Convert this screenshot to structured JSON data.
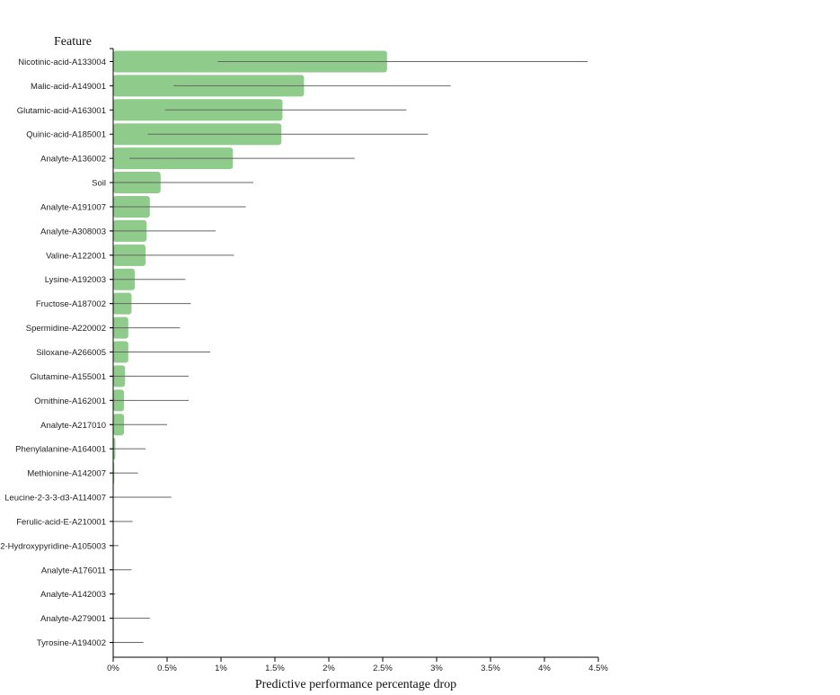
{
  "chart_data": {
    "type": "bar",
    "orientation": "horizontal",
    "ylabel": "Feature",
    "xlabel": "Predictive performance percentage drop",
    "xlim": [
      0,
      4.5
    ],
    "xticks": [
      "0%",
      "0.5%",
      "1%",
      "1.5%",
      "2%",
      "2.5%",
      "3%",
      "3.5%",
      "4%",
      "4.5%"
    ],
    "bar_color": "#8fcb8a",
    "error_color": "#666666",
    "categories": [
      "Nicotinic-acid-A133004",
      "Malic-acid-A149001",
      "Glutamic-acid-A163001",
      "Quinic-acid-A185001",
      "Analyte-A136002",
      "Soil",
      "Analyte-A191007",
      "Analyte-A308003",
      "Valine-A122001",
      "Lysine-A192003",
      "Fructose-A187002",
      "Spermidine-A220002",
      "Siloxane-A266005",
      "Glutamine-A155001",
      "Ornithine-A162001",
      "Analyte-A217010",
      "Phenylalanine-A164001",
      "Methionine-A142007",
      "Leucine-2-3-3-d3-A114007",
      "Ferulic-acid-E-A210001",
      "2-Hydroxypyridine-A105003",
      "Analyte-A176011",
      "Analyte-A142003",
      "Analyte-A279001",
      "Tyrosine-A194002"
    ],
    "values": [
      2.54,
      1.77,
      1.57,
      1.56,
      1.11,
      0.44,
      0.34,
      0.31,
      0.3,
      0.2,
      0.17,
      0.14,
      0.14,
      0.11,
      0.1,
      0.1,
      0.02,
      0.01,
      0.0,
      0.0,
      0.0,
      0.0,
      0.0,
      0.0,
      0.0
    ],
    "error_low": [
      0.97,
      0.56,
      0.48,
      0.32,
      0.15,
      0.0,
      0.0,
      0.0,
      0.0,
      0.0,
      0.0,
      0.0,
      0.0,
      0.0,
      0.0,
      0.0,
      0.0,
      0.0,
      0.0,
      0.0,
      0.0,
      0.0,
      0.0,
      0.0,
      0.0
    ],
    "error_high": [
      4.4,
      3.13,
      2.72,
      2.92,
      2.24,
      1.3,
      1.23,
      0.95,
      1.12,
      0.67,
      0.72,
      0.62,
      0.9,
      0.7,
      0.7,
      0.5,
      0.3,
      0.23,
      0.54,
      0.18,
      0.05,
      0.17,
      0.02,
      0.34,
      0.28
    ]
  }
}
